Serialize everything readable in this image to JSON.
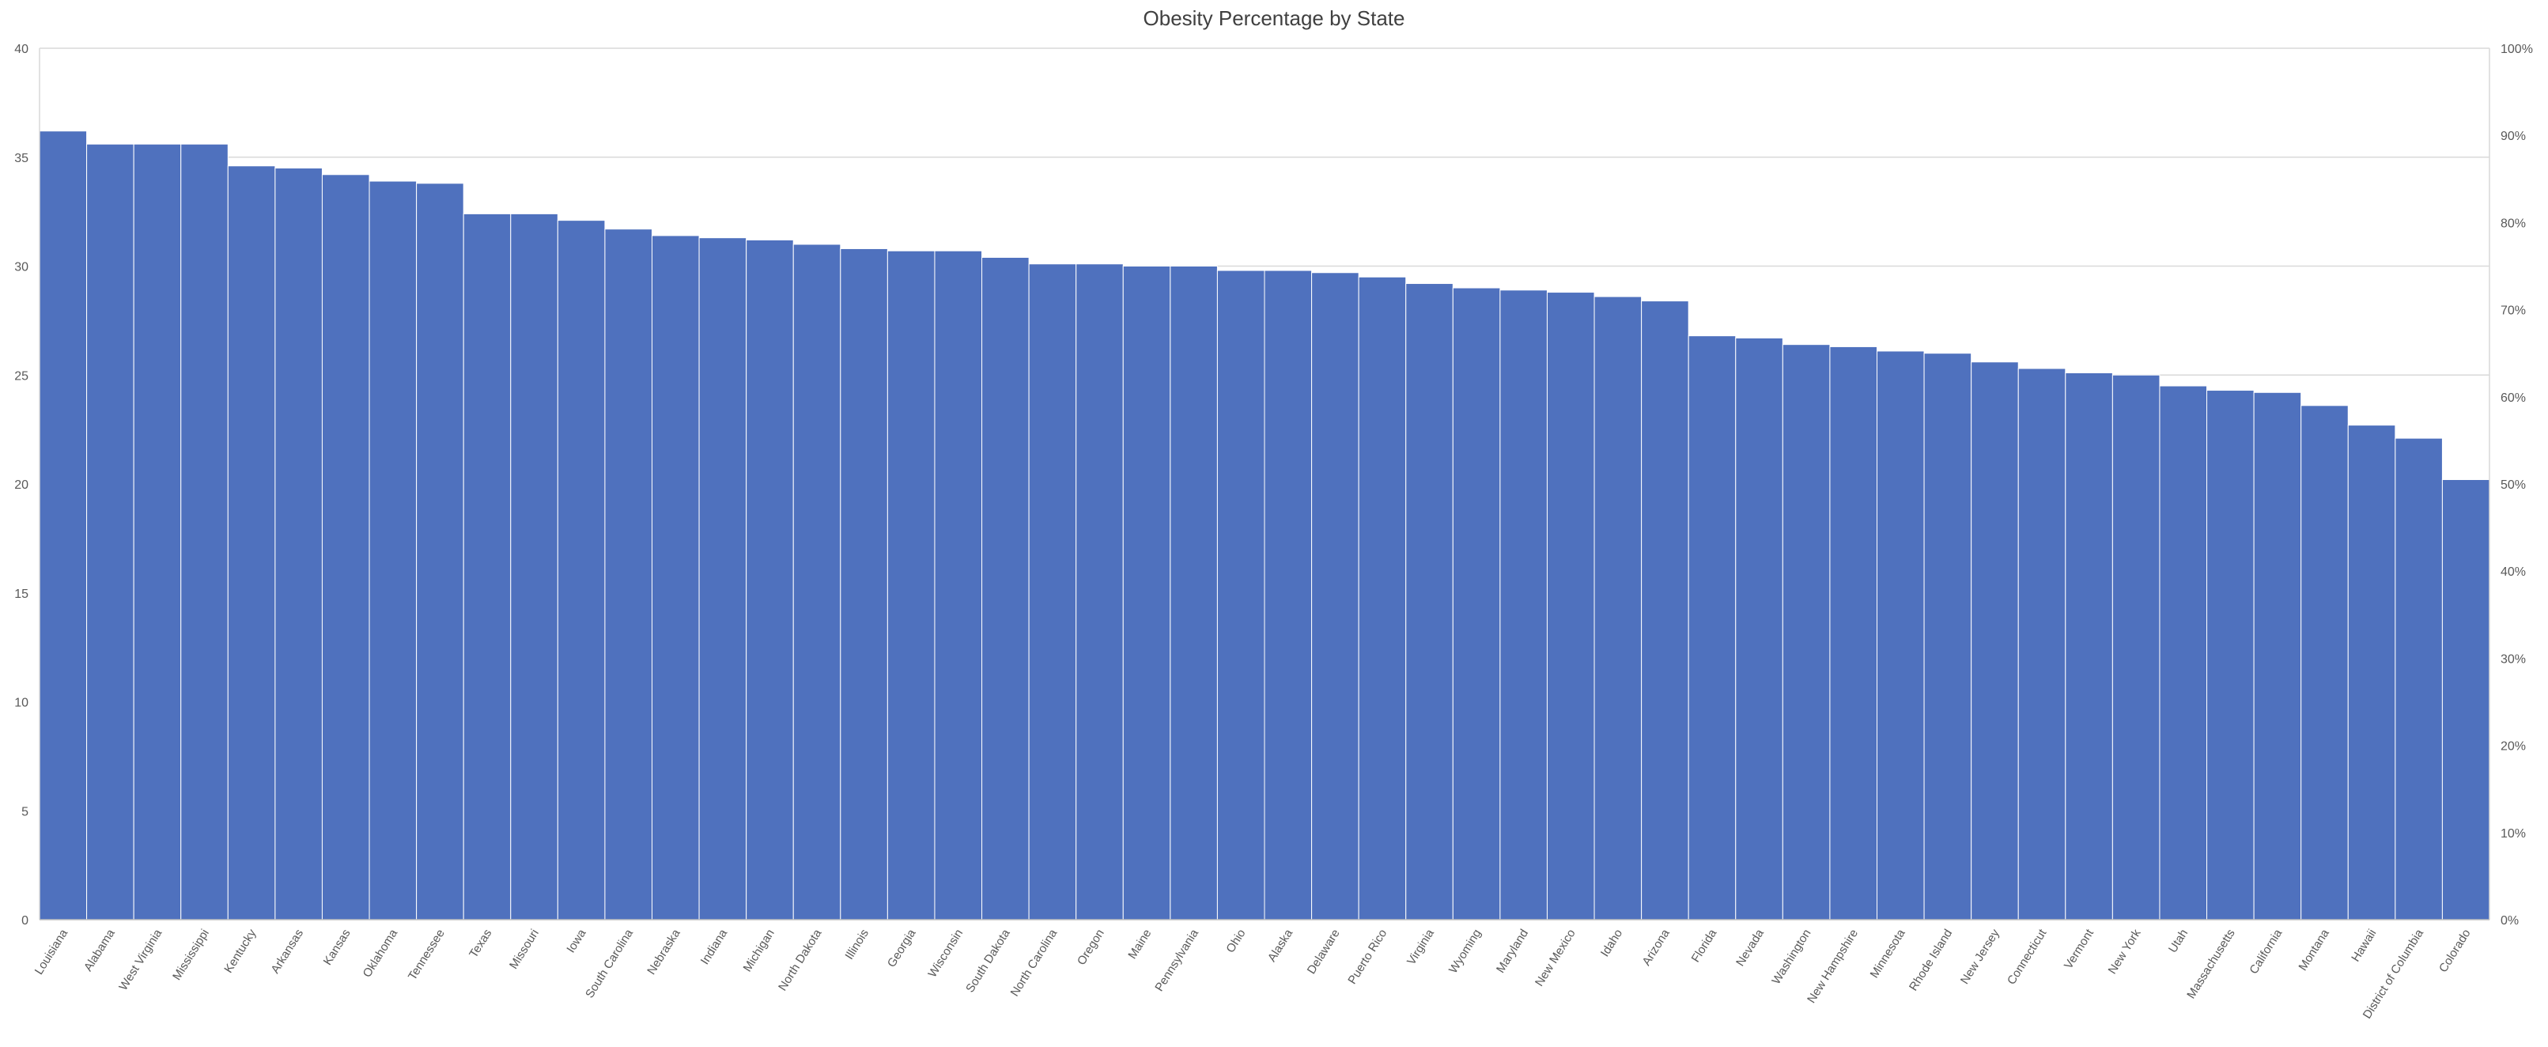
{
  "chart_data": {
    "type": "bar",
    "title": "Obesity Percentage by State",
    "categories": [
      "Louisiana",
      "Alabama",
      "West Virginia",
      "Mississippi",
      "Kentucky",
      "Arkansas",
      "Kansas",
      "Oklahoma",
      "Tennessee",
      "Texas",
      "Missouri",
      "Iowa",
      "South Carolina",
      "Nebraska",
      "Indiana",
      "Michigan",
      "North Dakota",
      "Illinois",
      "Georgia",
      "Wisconsin",
      "South Dakota",
      "North Carolina",
      "Oregon",
      "Maine",
      "Pennsylvania",
      "Ohio",
      "Alaska",
      "Delaware",
      "Puerto Rico",
      "Virginia",
      "Wyoming",
      "Maryland",
      "New Mexico",
      "Idaho",
      "Arizona",
      "Florida",
      "Nevada",
      "Washington",
      "New Hampshire",
      "Minnesota",
      "Rhode Island",
      "New Jersey",
      "Connecticut",
      "Vermont",
      "New York",
      "Utah",
      "Massachusetts",
      "California",
      "Montana",
      "Hawaii",
      "District of Columbia",
      "Colorado"
    ],
    "values": [
      36.2,
      35.6,
      35.6,
      35.6,
      34.6,
      34.5,
      34.2,
      33.9,
      33.8,
      32.4,
      32.4,
      32.1,
      31.7,
      31.4,
      31.3,
      31.2,
      31.0,
      30.8,
      30.7,
      30.7,
      30.4,
      30.1,
      30.1,
      30.0,
      30.0,
      29.8,
      29.8,
      29.7,
      29.5,
      29.2,
      29.0,
      28.9,
      28.8,
      28.6,
      28.4,
      26.8,
      26.7,
      26.4,
      26.3,
      26.1,
      26.0,
      25.6,
      25.3,
      25.1,
      25.0,
      24.5,
      24.3,
      24.2,
      23.6,
      22.7,
      22.1,
      20.2
    ],
    "ylim": [
      0,
      40
    ],
    "y_ticks": [
      "0",
      "5",
      "10",
      "15",
      "20",
      "25",
      "30",
      "35",
      "40"
    ],
    "y2_ticks": [
      "0%",
      "10%",
      "20%",
      "30%",
      "40%",
      "50%",
      "60%",
      "70%",
      "80%",
      "90%",
      "100%"
    ],
    "grid": true,
    "bar_color": "#4F71BE",
    "grid_color": "#D9D9D9"
  }
}
